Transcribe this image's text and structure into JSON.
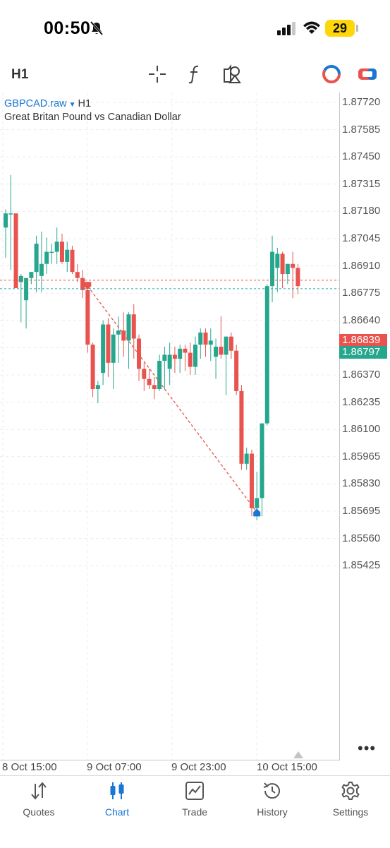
{
  "status": {
    "time": "00:50",
    "battery": "29"
  },
  "toolbar": {
    "timeframe": "H1"
  },
  "chart": {
    "symbol": "GBPCAD.raw",
    "timeframe": "H1",
    "description": "Great Britan Pound vs Canadian Dollar",
    "bid_price": "1.86839",
    "ask_price": "1.86797",
    "price_axis": [
      "1.87720",
      "1.87585",
      "1.87450",
      "1.87315",
      "1.87180",
      "1.87045",
      "1.86910",
      "1.86775",
      "1.86640",
      "1.86505",
      "1.86370",
      "1.86235",
      "1.86100",
      "1.85965",
      "1.85830",
      "1.85695",
      "1.85560",
      "1.85425"
    ],
    "time_axis": [
      "8 Oct 15:00",
      "9 Oct 07:00",
      "9 Oct 23:00",
      "10 Oct 15:00"
    ],
    "colors": {
      "bull": "#26a78d",
      "bear": "#e8534f",
      "link": "#1976d2"
    }
  },
  "chart_data": {
    "type": "candlestick",
    "title": "GBPCAD.raw",
    "timeframe": "H1",
    "ylim": [
      1.8535,
      1.878
    ],
    "candles": [
      {
        "o": 1.871,
        "h": 1.8719,
        "l": 1.8695,
        "c": 1.8717
      },
      {
        "o": 1.8717,
        "h": 1.8736,
        "l": 1.8689,
        "c": 1.8717
      },
      {
        "o": 1.8717,
        "h": 1.8717,
        "l": 1.868,
        "c": 1.868
      },
      {
        "o": 1.8683,
        "h": 1.8687,
        "l": 1.8663,
        "c": 1.8686
      },
      {
        "o": 1.8674,
        "h": 1.8684,
        "l": 1.866,
        "c": 1.8685
      },
      {
        "o": 1.8685,
        "h": 1.8688,
        "l": 1.8682,
        "c": 1.8688
      },
      {
        "o": 1.8688,
        "h": 1.8706,
        "l": 1.8678,
        "c": 1.8702
      },
      {
        "o": 1.8686,
        "h": 1.8708,
        "l": 1.8678,
        "c": 1.8692
      },
      {
        "o": 1.8692,
        "h": 1.8705,
        "l": 1.8687,
        "c": 1.8698
      },
      {
        "o": 1.8698,
        "h": 1.8702,
        "l": 1.8692,
        "c": 1.8698
      },
      {
        "o": 1.8698,
        "h": 1.871,
        "l": 1.8692,
        "c": 1.8703
      },
      {
        "o": 1.8703,
        "h": 1.8707,
        "l": 1.8692,
        "c": 1.8693
      },
      {
        "o": 1.8693,
        "h": 1.8703,
        "l": 1.8688,
        "c": 1.8699
      },
      {
        "o": 1.8699,
        "h": 1.8701,
        "l": 1.8687,
        "c": 1.8688
      },
      {
        "o": 1.8688,
        "h": 1.8692,
        "l": 1.8683,
        "c": 1.8685
      },
      {
        "o": 1.8685,
        "h": 1.8689,
        "l": 1.8675,
        "c": 1.8679
      },
      {
        "o": 1.8679,
        "h": 1.8681,
        "l": 1.8648,
        "c": 1.8652
      },
      {
        "o": 1.8652,
        "h": 1.8653,
        "l": 1.8626,
        "c": 1.863
      },
      {
        "o": 1.863,
        "h": 1.8634,
        "l": 1.8623,
        "c": 1.8632
      },
      {
        "o": 1.8638,
        "h": 1.8664,
        "l": 1.8632,
        "c": 1.8662
      },
      {
        "o": 1.8662,
        "h": 1.8665,
        "l": 1.8636,
        "c": 1.8643
      },
      {
        "o": 1.8643,
        "h": 1.866,
        "l": 1.863,
        "c": 1.8657
      },
      {
        "o": 1.8657,
        "h": 1.8666,
        "l": 1.8643,
        "c": 1.8659
      },
      {
        "o": 1.8659,
        "h": 1.8668,
        "l": 1.8646,
        "c": 1.8654
      },
      {
        "o": 1.8654,
        "h": 1.8668,
        "l": 1.864,
        "c": 1.8667
      },
      {
        "o": 1.8667,
        "h": 1.8672,
        "l": 1.8645,
        "c": 1.8655
      },
      {
        "o": 1.8655,
        "h": 1.8657,
        "l": 1.8634,
        "c": 1.864
      },
      {
        "o": 1.864,
        "h": 1.8643,
        "l": 1.8629,
        "c": 1.8635
      },
      {
        "o": 1.8635,
        "h": 1.864,
        "l": 1.863,
        "c": 1.8632
      },
      {
        "o": 1.8632,
        "h": 1.8636,
        "l": 1.8625,
        "c": 1.863
      },
      {
        "o": 1.863,
        "h": 1.8647,
        "l": 1.8629,
        "c": 1.8644
      },
      {
        "o": 1.8644,
        "h": 1.8651,
        "l": 1.863,
        "c": 1.8647
      },
      {
        "o": 1.864,
        "h": 1.8653,
        "l": 1.8632,
        "c": 1.8647
      },
      {
        "o": 1.8647,
        "h": 1.8651,
        "l": 1.8638,
        "c": 1.8645
      },
      {
        "o": 1.8645,
        "h": 1.8652,
        "l": 1.8638,
        "c": 1.865
      },
      {
        "o": 1.865,
        "h": 1.8652,
        "l": 1.8639,
        "c": 1.8648
      },
      {
        "o": 1.8648,
        "h": 1.8653,
        "l": 1.8637,
        "c": 1.8641
      },
      {
        "o": 1.8641,
        "h": 1.8656,
        "l": 1.8637,
        "c": 1.8652
      },
      {
        "o": 1.8652,
        "h": 1.866,
        "l": 1.8645,
        "c": 1.8658
      },
      {
        "o": 1.8658,
        "h": 1.866,
        "l": 1.8646,
        "c": 1.8652
      },
      {
        "o": 1.8652,
        "h": 1.866,
        "l": 1.8644,
        "c": 1.8654
      },
      {
        "o": 1.8646,
        "h": 1.8655,
        "l": 1.8635,
        "c": 1.8651
      },
      {
        "o": 1.8651,
        "h": 1.8666,
        "l": 1.8645,
        "c": 1.8647
      },
      {
        "o": 1.8647,
        "h": 1.8656,
        "l": 1.8627,
        "c": 1.8656
      },
      {
        "o": 1.8656,
        "h": 1.8658,
        "l": 1.8645,
        "c": 1.8649
      },
      {
        "o": 1.8649,
        "h": 1.8652,
        "l": 1.8627,
        "c": 1.8629
      },
      {
        "o": 1.8629,
        "h": 1.8632,
        "l": 1.859,
        "c": 1.8593
      },
      {
        "o": 1.8593,
        "h": 1.8601,
        "l": 1.859,
        "c": 1.8598
      },
      {
        "o": 1.8598,
        "h": 1.86,
        "l": 1.8567,
        "c": 1.8571
      },
      {
        "o": 1.8571,
        "h": 1.8589,
        "l": 1.8565,
        "c": 1.8576
      },
      {
        "o": 1.8576,
        "h": 1.8613,
        "l": 1.8567,
        "c": 1.8613
      },
      {
        "o": 1.8613,
        "h": 1.8682,
        "l": 1.8612,
        "c": 1.8681
      },
      {
        "o": 1.8681,
        "h": 1.8706,
        "l": 1.8673,
        "c": 1.8698
      },
      {
        "o": 1.869,
        "h": 1.87,
        "l": 1.8678,
        "c": 1.8697
      },
      {
        "o": 1.8697,
        "h": 1.8698,
        "l": 1.868,
        "c": 1.8687
      },
      {
        "o": 1.8687,
        "h": 1.8692,
        "l": 1.8682,
        "c": 1.8692
      },
      {
        "o": 1.8692,
        "h": 1.8698,
        "l": 1.8675,
        "c": 1.869
      },
      {
        "o": 1.869,
        "h": 1.8692,
        "l": 1.8677,
        "c": 1.8681
      }
    ],
    "bid": 1.86839,
    "ask": 1.86797,
    "trade_line": {
      "from_index": 16,
      "from_price": 1.8681,
      "to_index": 49,
      "to_price": 1.8569
    }
  },
  "tabs": [
    {
      "id": "quotes",
      "label": "Quotes",
      "icon": "quotes-icon"
    },
    {
      "id": "chart",
      "label": "Chart",
      "icon": "chart-icon"
    },
    {
      "id": "trade",
      "label": "Trade",
      "icon": "trade-icon"
    },
    {
      "id": "history",
      "label": "History",
      "icon": "history-icon"
    },
    {
      "id": "settings",
      "label": "Settings",
      "icon": "settings-icon"
    }
  ],
  "active_tab": "chart"
}
